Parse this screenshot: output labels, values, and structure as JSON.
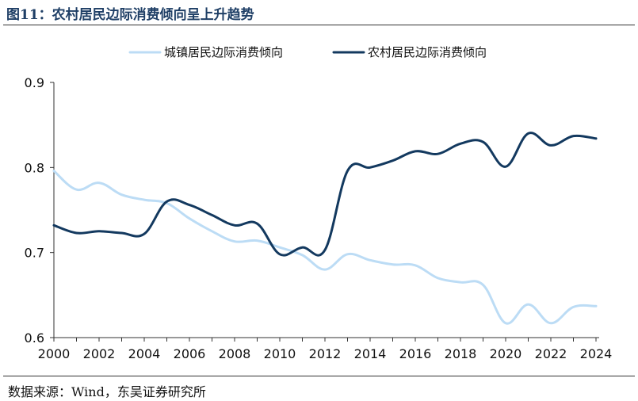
{
  "figure": {
    "title": "图11：农村居民边际消费倾向呈上升趋势",
    "source": "数据来源：Wind，东吴证券研究所"
  },
  "chart_data": {
    "type": "line",
    "title": "",
    "xlabel": "",
    "ylabel": "",
    "x": [
      2000,
      2001,
      2002,
      2003,
      2004,
      2005,
      2006,
      2007,
      2008,
      2009,
      2010,
      2011,
      2012,
      2013,
      2014,
      2015,
      2016,
      2017,
      2018,
      2019,
      2020,
      2021,
      2022,
      2023,
      2024
    ],
    "xticks": [
      "2000",
      "2002",
      "2004",
      "2006",
      "2008",
      "2010",
      "2012",
      "2014",
      "2016",
      "2018",
      "2020",
      "2022",
      "2024"
    ],
    "ylim": [
      0.6,
      0.9
    ],
    "yticks": [
      "0.6",
      "0.7",
      "0.8",
      "0.9"
    ],
    "grid": false,
    "legend_position": "top-center",
    "series": [
      {
        "name": "城镇居民边际消费倾向",
        "color": "#bcdcf5",
        "values": [
          0.796,
          0.774,
          0.782,
          0.768,
          0.762,
          0.758,
          0.74,
          0.725,
          0.713,
          0.714,
          0.706,
          0.697,
          0.68,
          0.698,
          0.691,
          0.686,
          0.685,
          0.67,
          0.665,
          0.662,
          0.617,
          0.639,
          0.617,
          0.636,
          0.637
        ]
      },
      {
        "name": "农村居民边际消费倾向",
        "color": "#13395f",
        "values": [
          0.732,
          0.723,
          0.725,
          0.723,
          0.722,
          0.76,
          0.756,
          0.744,
          0.732,
          0.734,
          0.698,
          0.706,
          0.703,
          0.796,
          0.8,
          0.808,
          0.819,
          0.816,
          0.828,
          0.83,
          0.801,
          0.84,
          0.826,
          0.837,
          0.834
        ]
      }
    ]
  }
}
